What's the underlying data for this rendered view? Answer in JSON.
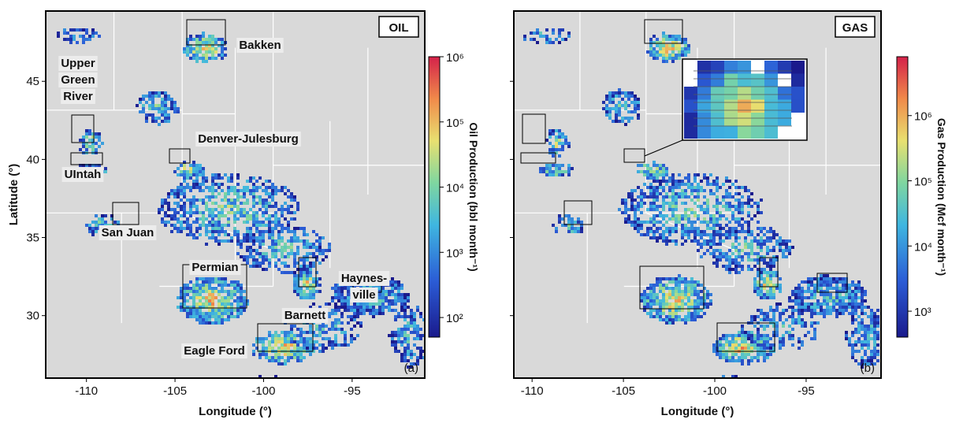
{
  "panels": [
    {
      "tag": "OIL",
      "letter": "(a)",
      "xlim": [
        -112.3,
        -90.9
      ],
      "ylim": [
        26,
        49.5
      ],
      "xticks": [
        -110,
        -105,
        -100,
        -95
      ],
      "yticks": [
        30,
        35,
        40,
        45
      ],
      "xlabel": "Longitude (°)",
      "ylabel": "Latitude (°)",
      "regions": [
        [
          "Bakken"
        ],
        [
          "Upper",
          "Green",
          "River"
        ],
        [
          "Denver-Julesburg"
        ],
        [
          "UIntah"
        ],
        [
          "San Juan"
        ],
        [
          "Permian"
        ],
        [
          "Barnett"
        ],
        [
          "Haynes-",
          "ville"
        ],
        [
          "Eagle Ford"
        ]
      ],
      "colorbar": {
        "title": "Oil Production (bbl month⁻¹)",
        "lim": [
          50,
          1000000
        ],
        "log": true,
        "ticks": [
          {
            "value": 100,
            "label": "10²"
          },
          {
            "value": 1000,
            "label": "10³"
          },
          {
            "value": 10000,
            "label": "10⁴"
          },
          {
            "value": 100000,
            "label": "10⁵"
          },
          {
            "value": 1000000,
            "label": "10⁶"
          }
        ]
      }
    },
    {
      "tag": "GAS",
      "letter": "(b)",
      "xlim": [
        -111,
        -90.9
      ],
      "ylim": [
        26,
        49.5
      ],
      "xticks": [
        -110,
        -105,
        -100,
        -95
      ],
      "yticks": [
        30,
        35,
        40,
        45
      ],
      "xlabel": "Longitude (°)",
      "colorbar": {
        "title": "Gas Production (Mcf month⁻¹)",
        "lim": [
          400,
          8000000
        ],
        "log": true,
        "ticks": [
          {
            "value": 1000,
            "label": "10³"
          },
          {
            "value": 10000,
            "label": "10⁴"
          },
          {
            "value": 100000,
            "label": "10⁵"
          },
          {
            "value": 1000000,
            "label": "10⁶"
          }
        ]
      }
    }
  ]
}
